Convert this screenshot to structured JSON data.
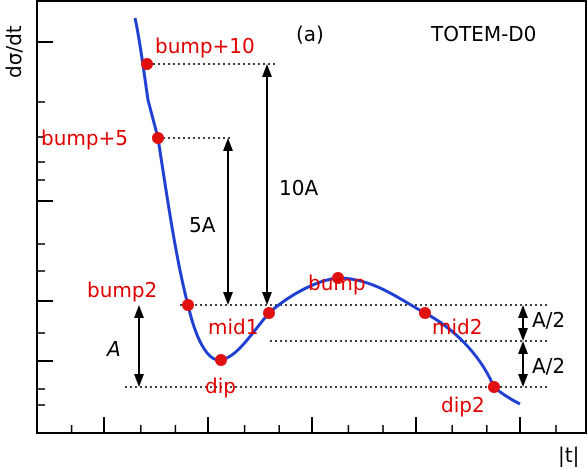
{
  "chart_data": {
    "type": "line",
    "xlabel": "|t|",
    "ylabel": "dσ/dt",
    "panel_label": "(a)",
    "experiment_label": "TOTEM-D0",
    "colors": {
      "curve": "#1f3fd0",
      "points": "#e01010",
      "point_labels": "#e00000",
      "axes": "#000000"
    },
    "points": [
      {
        "name": "bump+10",
        "label": "bump+10"
      },
      {
        "name": "bump+5",
        "label": "bump+5"
      },
      {
        "name": "bump2",
        "label": "bump2"
      },
      {
        "name": "dip",
        "label": "dip"
      },
      {
        "name": "mid1",
        "label": "mid1"
      },
      {
        "name": "bump",
        "label": "bump"
      },
      {
        "name": "mid2",
        "label": "mid2"
      },
      {
        "name": "dip2",
        "label": "dip2"
      }
    ],
    "measures": [
      {
        "name": "A",
        "label": "A"
      },
      {
        "name": "5A",
        "label": "5A"
      },
      {
        "name": "10A",
        "label": "10A"
      },
      {
        "name": "A/2-upper",
        "label": "A/2"
      },
      {
        "name": "A/2-lower",
        "label": "A/2"
      }
    ]
  }
}
